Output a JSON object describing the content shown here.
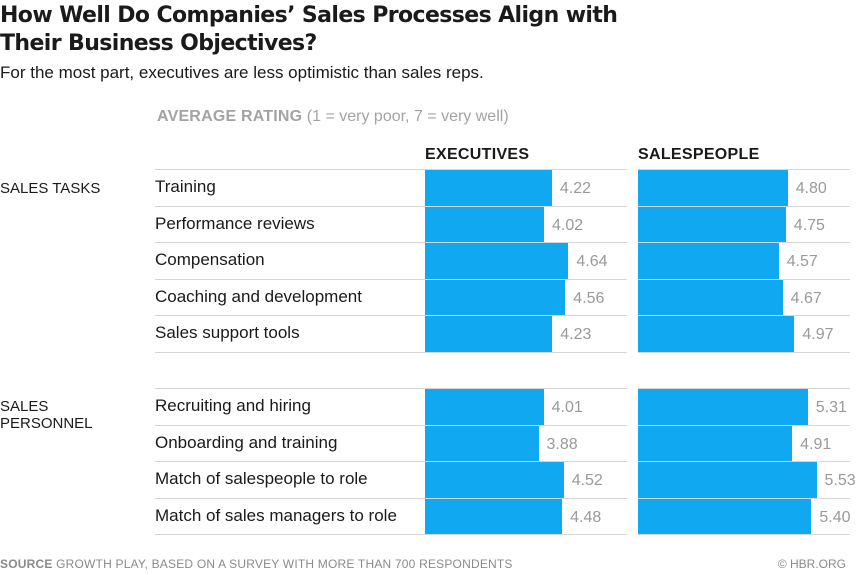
{
  "title": "How Well Do Companies’ Sales Processes Align with Their Business Objectives?",
  "subtitle": "For the most part, executives are less optimistic than sales reps.",
  "rating_header": {
    "bold": "AVERAGE RATING",
    "scale": "(1 = very poor, 7 = very well)"
  },
  "footer": {
    "source_label": "SOURCE",
    "source_text": "GROWTH PLAY, BASED ON A SURVEY WITH MORE THAN 700 RESPONDENTS",
    "credit": "© HBR.ORG"
  },
  "colors": {
    "bar": "#10a8f0",
    "value_text": "#9a9a9a"
  },
  "chart_data": {
    "type": "bar",
    "orientation": "horizontal",
    "scale": [
      1,
      7
    ],
    "series": [
      {
        "name": "EXECUTIVES"
      },
      {
        "name": "SALESPEOPLE"
      }
    ],
    "groups": [
      {
        "label": "SALES TASKS",
        "rows": [
          {
            "label": "Training",
            "values": [
              4.22,
              4.8
            ],
            "display": [
              "4.22",
              "4.80"
            ]
          },
          {
            "label": "Performance reviews",
            "values": [
              4.02,
              4.75
            ],
            "display": [
              "4.02",
              "4.75"
            ]
          },
          {
            "label": "Compensation",
            "values": [
              4.64,
              4.57
            ],
            "display": [
              "4.64",
              "4.57"
            ]
          },
          {
            "label": "Coaching and development",
            "values": [
              4.56,
              4.67
            ],
            "display": [
              "4.56",
              "4.67"
            ]
          },
          {
            "label": "Sales support tools",
            "values": [
              4.23,
              4.97
            ],
            "display": [
              "4.23",
              "4.97"
            ]
          }
        ]
      },
      {
        "label": "SALES PERSONNEL",
        "rows": [
          {
            "label": "Recruiting and hiring",
            "values": [
              4.01,
              5.31
            ],
            "display": [
              "4.01",
              "5.31"
            ]
          },
          {
            "label": "Onboarding and training",
            "values": [
              3.88,
              4.91
            ],
            "display": [
              "3.88",
              "4.91"
            ]
          },
          {
            "label": "Match of salespeople to role",
            "values": [
              4.52,
              5.53
            ],
            "display": [
              "4.52",
              "5.53"
            ]
          },
          {
            "label": "Match of sales managers to role",
            "values": [
              4.48,
              5.4
            ],
            "display": [
              "4.48",
              "5.40"
            ]
          }
        ]
      }
    ]
  }
}
